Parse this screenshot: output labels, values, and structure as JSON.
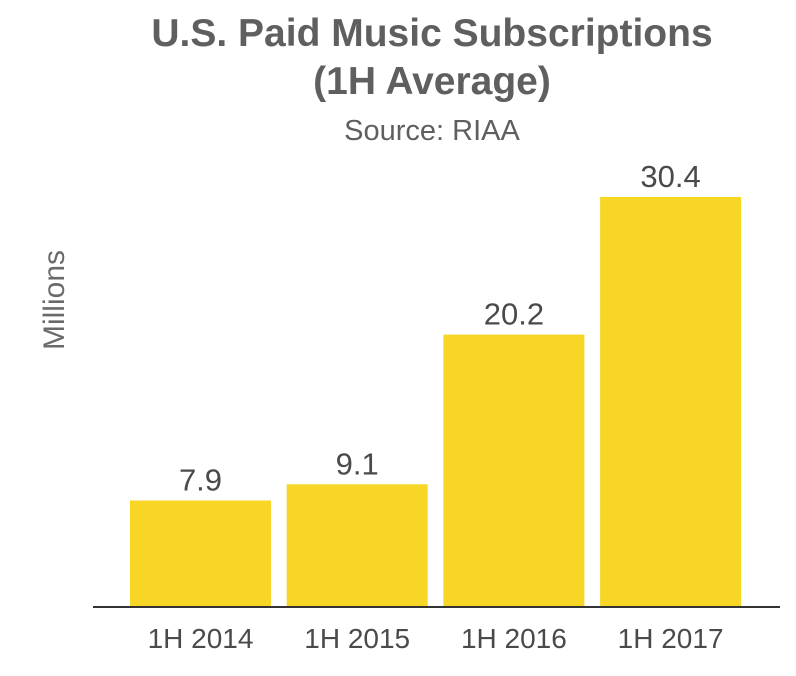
{
  "chart_data": {
    "type": "bar",
    "title": "U.S. Paid Music Subscriptions",
    "title_line2": "(1H Average)",
    "subtitle": "Source: RIAA",
    "xlabel": "",
    "ylabel": "Millions",
    "categories": [
      "1H 2014",
      "1H 2015",
      "1H 2016",
      "1H 2017"
    ],
    "values": [
      7.9,
      9.1,
      20.2,
      30.4
    ],
    "value_labels": [
      "7.9",
      "9.1",
      "20.2",
      "30.4"
    ],
    "ylim": [
      0,
      30.4
    ],
    "grid": false,
    "legend": "none",
    "colors": {
      "bar": "#f7d626",
      "axis": "#333333",
      "text": "#5f5f5f"
    }
  }
}
